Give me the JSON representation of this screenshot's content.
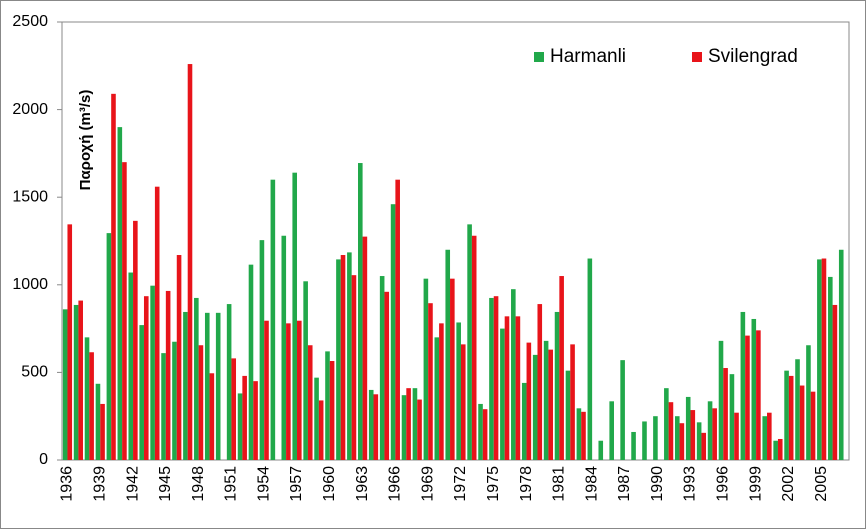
{
  "chart_data": {
    "type": "bar",
    "ylabel": "Παροχή (m³/s)",
    "categories": [
      "1936",
      null,
      null,
      "1939",
      null,
      null,
      "1942",
      null,
      null,
      "1945",
      null,
      null,
      "1948",
      null,
      null,
      "1951",
      null,
      null,
      "1954",
      null,
      null,
      "1957",
      null,
      null,
      "1960",
      null,
      null,
      "1963",
      null,
      null,
      "1966",
      null,
      null,
      "1969",
      null,
      null,
      "1972",
      null,
      null,
      "1975",
      null,
      null,
      "1978",
      null,
      null,
      "1981",
      null,
      null,
      "1984",
      null,
      null,
      "1987",
      null,
      null,
      "1990",
      null,
      null,
      "1993",
      null,
      null,
      "1996",
      null,
      null,
      "1999",
      null,
      null,
      "2002",
      null,
      null,
      "2005",
      null,
      null
    ],
    "series": [
      {
        "name": "Harmanli",
        "color": "#21a84a",
        "values": [
          860,
          885,
          700,
          435,
          1295,
          1900,
          1070,
          770,
          995,
          610,
          675,
          845,
          925,
          840,
          840,
          890,
          380,
          1115,
          1255,
          1600,
          1280,
          1640,
          1020,
          470,
          620,
          1145,
          1185,
          1695,
          400,
          1050,
          1460,
          370,
          410,
          1035,
          700,
          1200,
          785,
          1345,
          320,
          925,
          750,
          975,
          440,
          600,
          680,
          845,
          510,
          295,
          1150,
          110,
          335,
          570,
          160,
          220,
          250,
          410,
          250,
          360,
          215,
          335,
          680,
          490,
          845,
          805,
          250,
          110,
          510,
          575,
          655,
          1145,
          1045,
          1200
        ]
      },
      {
        "name": "Svilengrad",
        "color": "#e8141a",
        "values": [
          1345,
          910,
          615,
          320,
          2090,
          1700,
          1365,
          935,
          1560,
          965,
          1170,
          2260,
          655,
          495,
          null,
          580,
          480,
          450,
          795,
          null,
          780,
          795,
          655,
          340,
          565,
          1170,
          1055,
          1275,
          375,
          960,
          1600,
          410,
          345,
          895,
          780,
          1035,
          660,
          1280,
          290,
          935,
          820,
          820,
          670,
          890,
          630,
          1050,
          660,
          275,
          null,
          null,
          null,
          null,
          null,
          null,
          null,
          330,
          210,
          285,
          155,
          295,
          525,
          270,
          710,
          740,
          270,
          120,
          480,
          425,
          390,
          1150,
          885,
          null
        ]
      }
    ],
    "ylim": [
      0,
      2500
    ],
    "yticks": [
      0,
      500,
      1000,
      1500,
      2000,
      2500
    ],
    "grid": false,
    "legend": "upper right"
  }
}
